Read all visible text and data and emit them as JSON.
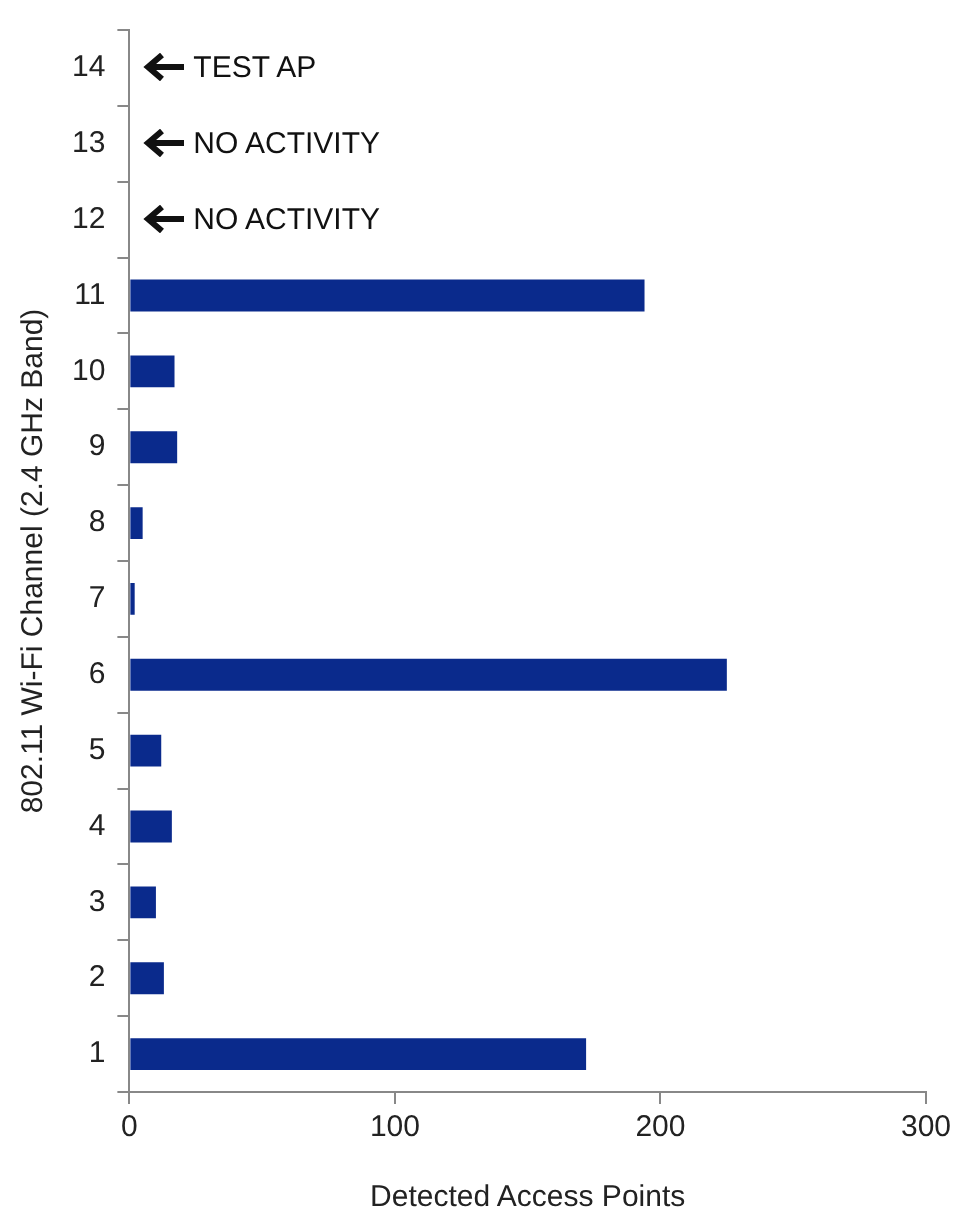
{
  "chart_data": {
    "type": "bar",
    "orientation": "horizontal",
    "xlabel": "Detected Access Points",
    "ylabel": "802.11 Wi-Fi Channel (2.4 GHz Band)",
    "categories": [
      "14",
      "13",
      "12",
      "11",
      "10",
      "9",
      "8",
      "7",
      "6",
      "5",
      "4",
      "3",
      "2",
      "1"
    ],
    "values": [
      null,
      0,
      0,
      194,
      17,
      18,
      5,
      2,
      225,
      12,
      16,
      10,
      13,
      172
    ],
    "color": "#0a2a8c",
    "xlim": [
      0,
      300
    ],
    "xticks": [
      0,
      100,
      200,
      300
    ],
    "grid": false,
    "legend": false,
    "annotations": [
      "TEST AP",
      "NO ACTIVITY",
      "NO ACTIVITY"
    ]
  }
}
